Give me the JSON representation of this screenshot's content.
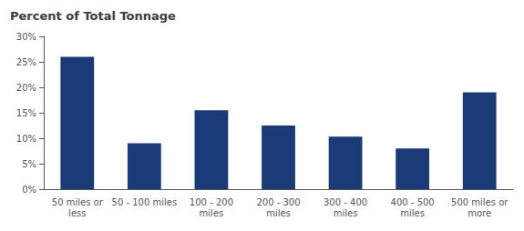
{
  "chart_data": {
    "type": "bar",
    "title": "Percent of Total Tonnage",
    "categories": [
      "50 miles or\nless",
      "50 - 100 miles",
      "100 - 200\nmiles",
      "200 - 300\nmiles",
      "300 - 400\nmiles",
      "400 - 500\nmiles",
      "500 miles or\nmore"
    ],
    "values": [
      26.0,
      9.0,
      15.5,
      12.5,
      10.3,
      8.0,
      19.0
    ],
    "color": "#1b3a78",
    "ylim": [
      0,
      30
    ],
    "yticks": [
      {
        "value": 0,
        "label": "0%"
      },
      {
        "value": 5,
        "label": "5%"
      },
      {
        "value": 10,
        "label": "10%"
      },
      {
        "value": 15,
        "label": "15%"
      },
      {
        "value": 20,
        "label": "20%"
      },
      {
        "value": 25,
        "label": "25%"
      },
      {
        "value": 30,
        "label": "30%"
      }
    ],
    "grid": false
  }
}
